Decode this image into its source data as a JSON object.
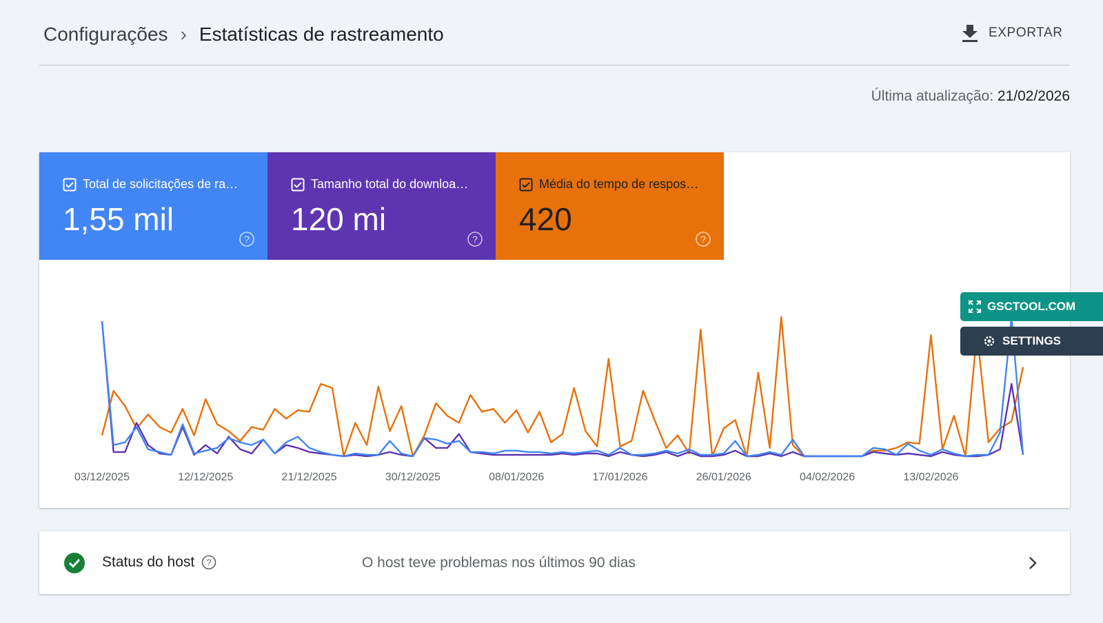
{
  "header": {
    "breadcrumb_parent": "Configurações",
    "title": "Estatísticas de rastreamento",
    "export": "EXPORTAR"
  },
  "last_update": {
    "label": "Última atualização:",
    "date": "21/02/2026"
  },
  "cards": [
    {
      "label": "Total de solicitações de ra…",
      "value": "1,55 mil",
      "color": "#4285f4"
    },
    {
      "label": "Tamanho total do downloa…",
      "value": "120 mi",
      "color": "#5e35b1"
    },
    {
      "label": "Média do tempo de respos…",
      "value": "420",
      "color": "#e8710a"
    }
  ],
  "overlay_buttons": [
    "GSCTOOL.COM",
    "SETTINGS"
  ],
  "chart_data": {
    "type": "line",
    "ylim": [
      0,
      100
    ],
    "categories": [
      "03/12/2025",
      null,
      null,
      null,
      null,
      null,
      null,
      null,
      null,
      "12/12/2025",
      null,
      null,
      null,
      null,
      null,
      null,
      null,
      null,
      "21/12/2025",
      null,
      null,
      null,
      null,
      null,
      null,
      null,
      null,
      "30/12/2025",
      null,
      null,
      null,
      null,
      null,
      null,
      null,
      null,
      "08/01/2026",
      null,
      null,
      null,
      null,
      null,
      null,
      null,
      null,
      "17/01/2026",
      null,
      null,
      null,
      null,
      null,
      null,
      null,
      null,
      "26/01/2026",
      null,
      null,
      null,
      null,
      null,
      null,
      null,
      null,
      "04/02/2026",
      null,
      null,
      null,
      null,
      null,
      null,
      null,
      null,
      "13/02/2026",
      null,
      null,
      null,
      null,
      null,
      null,
      null,
      null
    ],
    "series": [
      {
        "color": "#e8710a",
        "values": [
          15,
          47,
          36,
          20,
          30,
          21,
          17,
          34,
          15,
          41,
          23,
          18,
          11,
          21,
          19,
          34,
          27,
          33,
          32,
          52,
          49,
          0,
          24,
          8,
          50,
          18,
          36,
          0,
          15,
          38,
          29,
          24,
          44,
          32,
          34,
          24,
          33,
          17,
          32,
          10,
          16,
          49,
          18,
          7,
          70,
          7,
          11,
          47,
          26,
          6,
          15,
          2,
          91,
          0,
          20,
          26,
          0,
          60,
          6,
          100,
          8,
          0,
          0,
          0,
          0,
          0,
          0,
          4,
          4,
          6,
          10,
          9,
          87,
          5,
          29,
          0,
          89,
          10,
          20,
          25,
          64
        ]
      },
      {
        "color": "#5e35b1",
        "values": [
          97,
          3,
          3,
          24,
          8,
          2,
          1,
          21,
          1,
          8,
          2,
          14,
          5,
          2,
          12,
          2,
          8,
          6,
          3,
          2,
          1,
          0,
          1,
          0,
          1,
          3,
          1,
          0,
          13,
          6,
          6,
          16,
          3,
          2,
          1,
          1,
          1,
          1,
          1,
          1,
          2,
          1,
          2,
          2,
          0,
          3,
          1,
          0,
          1,
          3,
          0,
          3,
          0,
          0,
          1,
          4,
          0,
          0,
          2,
          0,
          3,
          0,
          0,
          0,
          0,
          0,
          0,
          3,
          2,
          1,
          2,
          1,
          0,
          3,
          1,
          0,
          0,
          1,
          5,
          52,
          1
        ]
      },
      {
        "color": "#4285f4",
        "values": [
          97,
          8,
          10,
          21,
          5,
          3,
          1,
          23,
          2,
          4,
          6,
          13,
          10,
          8,
          12,
          2,
          10,
          14,
          6,
          3,
          1,
          0,
          2,
          1,
          1,
          11,
          2,
          0,
          13,
          12,
          9,
          11,
          3,
          3,
          2,
          4,
          4,
          3,
          3,
          2,
          3,
          2,
          3,
          4,
          1,
          6,
          1,
          1,
          2,
          4,
          2,
          5,
          1,
          1,
          2,
          11,
          0,
          1,
          3,
          1,
          12,
          0,
          0,
          0,
          0,
          0,
          0,
          6,
          5,
          1,
          9,
          4,
          1,
          5,
          2,
          0,
          1,
          1,
          17,
          100,
          1
        ]
      }
    ]
  },
  "host_status": {
    "label": "Status do host",
    "text": "O host teve problemas nos últimos 90 dias"
  }
}
